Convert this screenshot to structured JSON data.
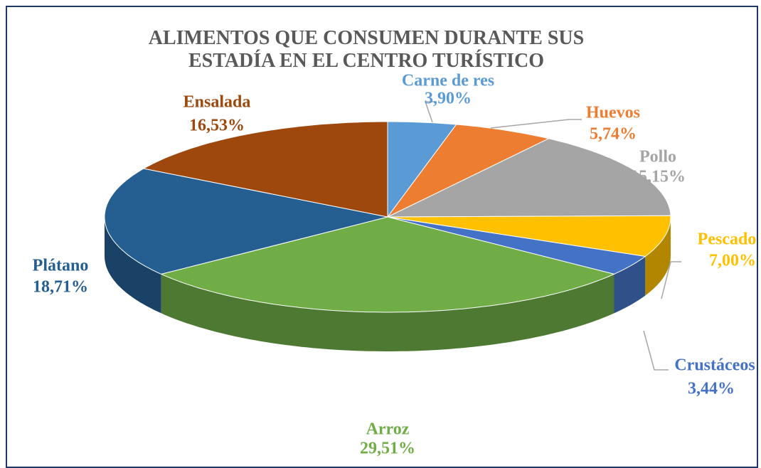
{
  "chart_data": {
    "type": "pie3d",
    "title": "ALIMENTOS QUE CONSUMEN DURANTE SUS\nESTADÍA EN  EL CENTRO TURÍSTICO",
    "categories": [
      "Carne de  res",
      "Huevos",
      "Pollo",
      "Pescado",
      "Crustáceos",
      "Arroz",
      "Plátano",
      "Ensalada"
    ],
    "values": [
      3.9,
      5.74,
      15.15,
      7.0,
      3.44,
      29.51,
      18.71,
      16.53
    ],
    "value_labels": [
      "3,90%",
      "5,74%",
      "15,15%",
      "7,00%",
      "3,44%",
      "29,51%",
      "18,71%",
      "16,53%"
    ],
    "colors": [
      "#5b9bd5",
      "#ed7d31",
      "#a5a5a5",
      "#ffc000",
      "#4472c4",
      "#70ad47",
      "#255e91",
      "#9e480e"
    ]
  }
}
